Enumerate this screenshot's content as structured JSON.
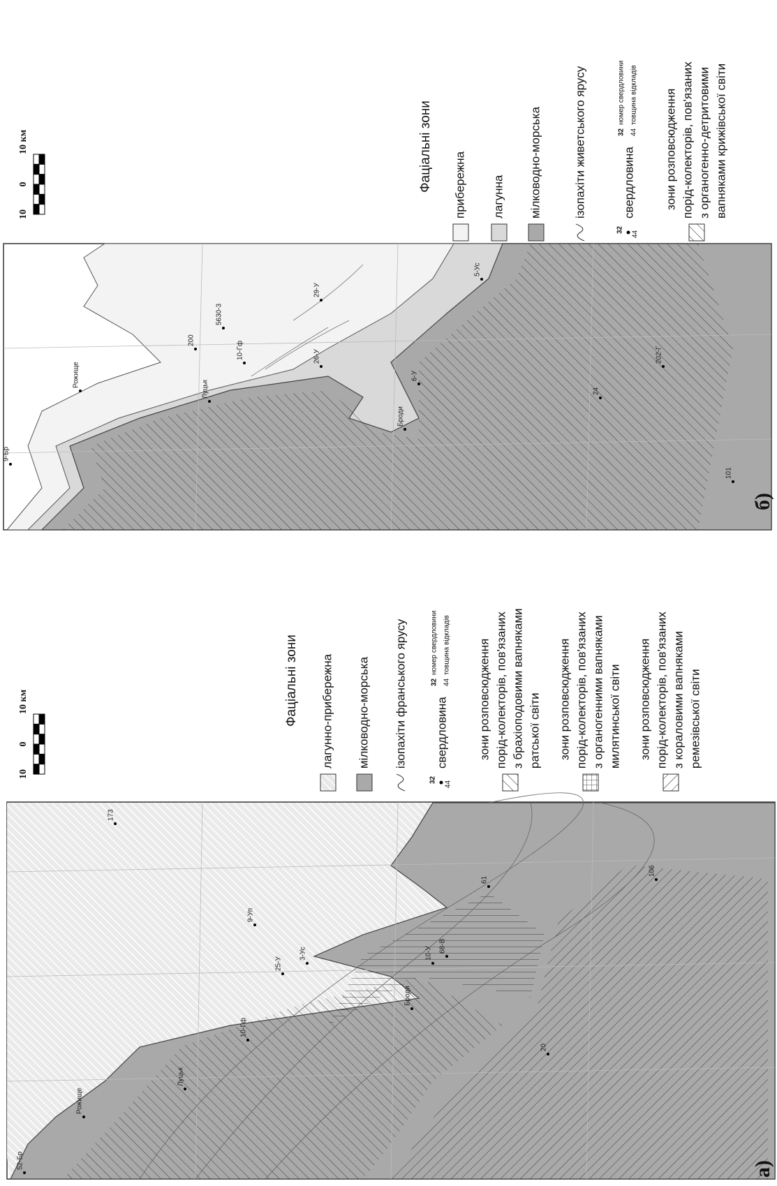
{
  "panels": [
    {
      "label": "а)",
      "scale": [
        "10",
        "0",
        "10 км"
      ],
      "legend": {
        "title": "Фаціальні зони",
        "items": [
          "лагунно-прибережна",
          "мілководно-морська",
          "ізопахіти франського ярусу"
        ],
        "well": {
          "label": "свердловина",
          "number": "32",
          "number_note": "номер свердловини",
          "thickness": "44",
          "thickness_note": "товщина відкладів"
        },
        "zones": [
          [
            "зони розповсюдження",
            "порід-колекторів, пов'язаних",
            "з брахіоподовими вапняками",
            "ратської світи"
          ],
          [
            "зони розповсюдження",
            "порід-колекторів, пов'язаних",
            "з органогенними вапняками",
            "милятинської світи"
          ],
          [
            "зони розповсюдження",
            "порід-колекторів, пов'язаних",
            "з кораловими вапняками",
            "ремезівської світи"
          ]
        ]
      },
      "wells": [
        "52-Бр",
        "Рожище",
        "Луцьк",
        "10-Гф",
        "25-У",
        "3-Ус",
        "9-Уп",
        "10-У",
        "Броди",
        "61",
        "106",
        "20",
        "173",
        "68-В"
      ]
    },
    {
      "label": "б)",
      "scale": [
        "10",
        "0",
        "10 км"
      ],
      "legend": {
        "title": "Фаціальні зони",
        "items": [
          "прибережна",
          "лагунна",
          "мілководно-морська",
          "ізопахіти живетського ярусу"
        ],
        "well": {
          "label": "свердловина",
          "number": "32",
          "number_note": "номер свердловини",
          "thickness": "44",
          "thickness_note": "товщина відкладів"
        },
        "zones": [
          [
            "зони розповсюдження",
            "порід-колекторів, пов'язаних",
            "з органогенно-детритовими",
            "вапняками крижівської світи"
          ]
        ]
      },
      "wells": [
        "9-Бр",
        "Рожище",
        "Луцьк",
        "10-Гф",
        "26-У",
        "5630-3",
        "Броди",
        "6-У",
        "5-Ус",
        "24",
        "202-Г",
        "101",
        "200",
        "29-У"
      ]
    }
  ]
}
